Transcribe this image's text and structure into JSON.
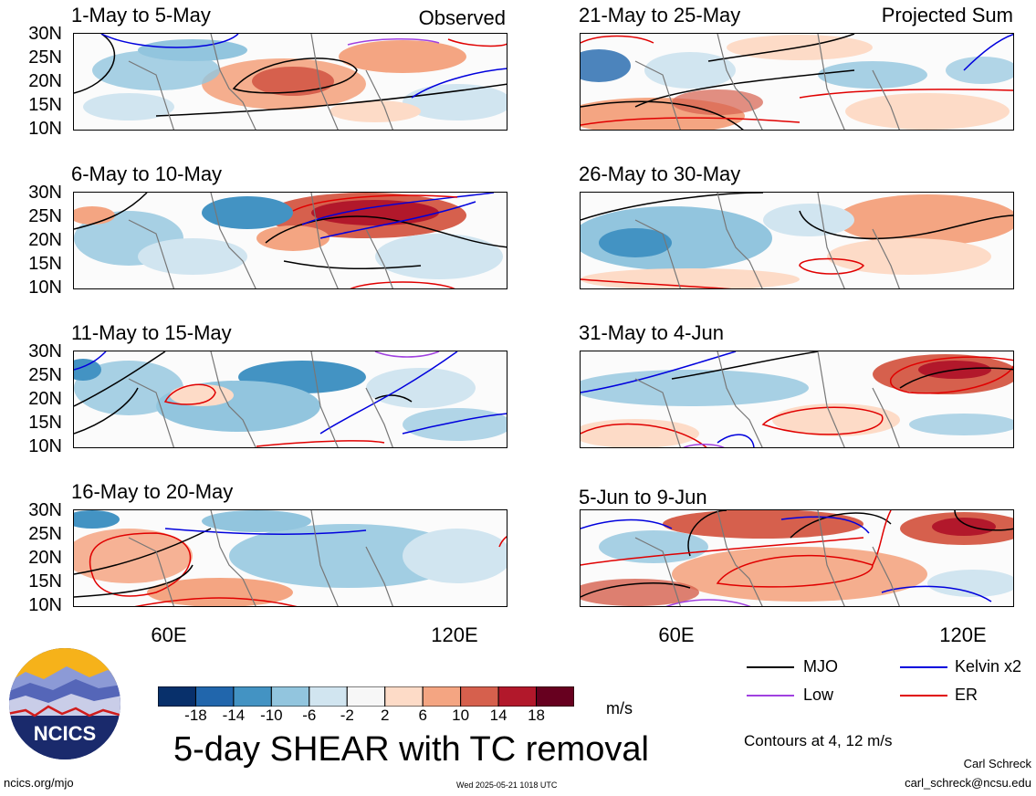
{
  "panels_left": [
    {
      "title": "1-May to 5-May",
      "corner": "Observed"
    },
    {
      "title": "6-May to 10-May",
      "corner": ""
    },
    {
      "title": "11-May to 15-May",
      "corner": ""
    },
    {
      "title": "16-May to 20-May",
      "corner": ""
    }
  ],
  "panels_right": [
    {
      "title": "21-May to 25-May",
      "corner": "Projected Sum"
    },
    {
      "title": "26-May to 30-May",
      "corner": ""
    },
    {
      "title": "31-May to 4-Jun",
      "corner": ""
    },
    {
      "title": "5-Jun to 9-Jun",
      "corner": ""
    }
  ],
  "lat_labels": [
    "30N",
    "25N",
    "20N",
    "15N",
    "10N"
  ],
  "lon_labels": [
    "60E",
    "120E"
  ],
  "colorbar": {
    "ticks": [
      "-18",
      "-14",
      "-10",
      "-6",
      "-2",
      "2",
      "6",
      "10",
      "14",
      "18"
    ],
    "colors": [
      "#08306b",
      "#2166ac",
      "#4393c3",
      "#92c5de",
      "#d1e5f0",
      "#f7f7f7",
      "#fddbc7",
      "#f4a582",
      "#d6604d",
      "#b2182b",
      "#67001f"
    ],
    "units": "m/s"
  },
  "legend": {
    "items": [
      {
        "label": "MJO",
        "color": "#000000"
      },
      {
        "label": "Kelvin x2",
        "color": "#0000dd"
      },
      {
        "label": "Low",
        "color": "#a040e0"
      },
      {
        "label": "ER",
        "color": "#e00000"
      }
    ],
    "contours_note": "Contours at 4, 12 m/s"
  },
  "main_title": "5-day SHEAR with TC removal",
  "logo_text": "NCICS",
  "footer": {
    "url": "ncics.org/mjo",
    "timestamp": "Wed 2025-05-21 1018 UTC",
    "author": "Carl Schreck",
    "email": "carl_schreck@ncsu.edu"
  }
}
